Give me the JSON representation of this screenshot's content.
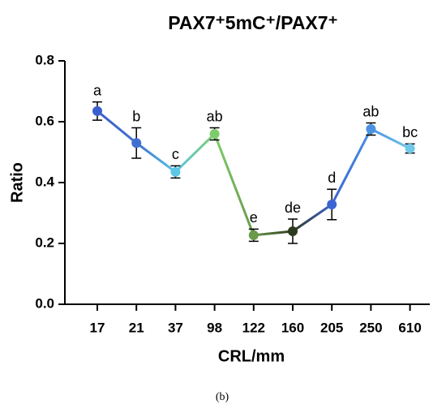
{
  "chart_data": {
    "type": "line",
    "title": "PAX7⁺5mC⁺/PAX7⁺",
    "x_label": "CRL/mm",
    "y_label": "Ratio",
    "caption": "(b)",
    "categories": [
      "17",
      "21",
      "37",
      "98",
      "122",
      "160",
      "205",
      "250",
      "610"
    ],
    "values": [
      0.635,
      0.53,
      0.435,
      0.56,
      0.227,
      0.24,
      0.328,
      0.576,
      0.512
    ],
    "errors": [
      0.03,
      0.05,
      0.02,
      0.02,
      0.02,
      0.04,
      0.05,
      0.02,
      0.015
    ],
    "value_labels": [
      "a",
      "b",
      "c",
      "ab",
      "e",
      "de",
      "d",
      "ab",
      "bc"
    ],
    "point_colors": [
      "#3a5fcd",
      "#3f6fd0",
      "#5cc6e6",
      "#7ccd6a",
      "#6a9a4a",
      "#2e3a1e",
      "#3b63d2",
      "#4b93e2",
      "#6fc8ea"
    ],
    "ylim": [
      0,
      0.8
    ],
    "yticks": [
      {
        "value": 0,
        "label": "0.0"
      },
      {
        "value": 0.2,
        "label": "0.2"
      },
      {
        "value": 0.4,
        "label": "0.4"
      },
      {
        "value": 0.6,
        "label": "0.6"
      },
      {
        "value": 0.8,
        "label": "0.8"
      }
    ]
  }
}
